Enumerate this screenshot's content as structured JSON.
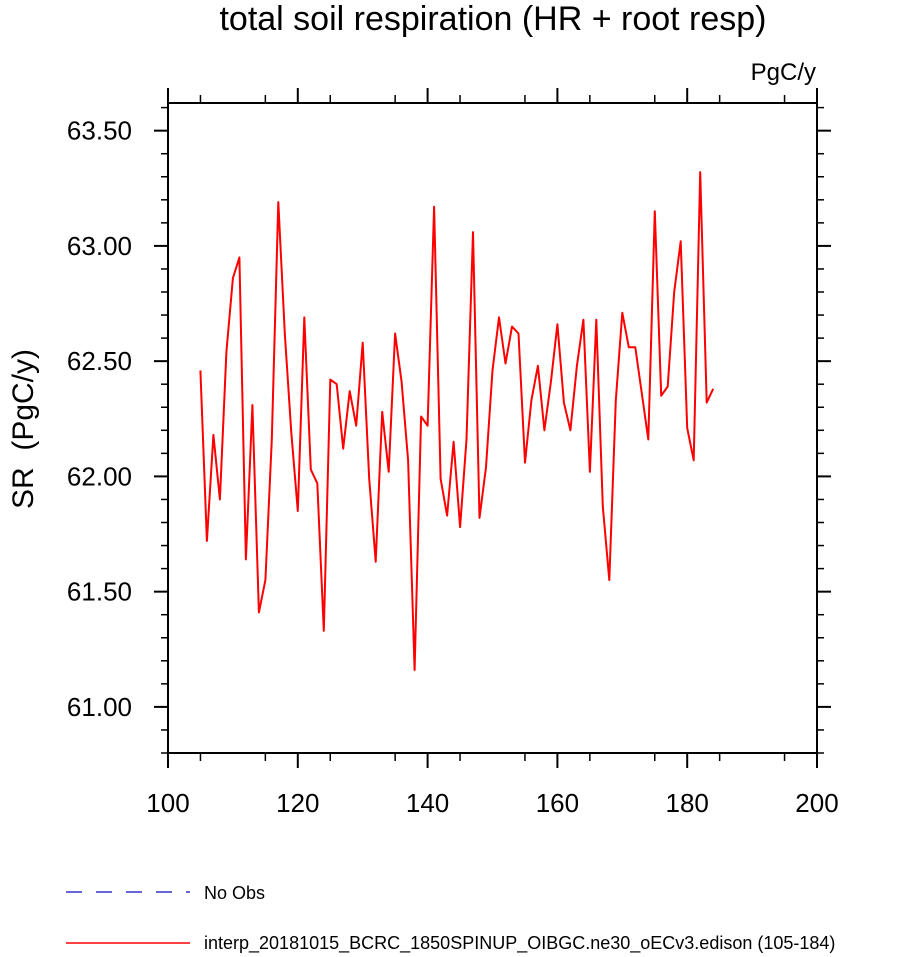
{
  "chart_data": {
    "type": "line",
    "title": "total soil respiration (HR + root resp)",
    "units": "PgC/y",
    "xlabel": "",
    "ylabel": "SR  (PgC/y)",
    "xlim": [
      100,
      200
    ],
    "ylim": [
      60.8,
      63.62
    ],
    "xticks": [
      "100",
      "120",
      "140",
      "160",
      "180",
      "200"
    ],
    "yticks": [
      "61.00",
      "61.50",
      "62.00",
      "62.50",
      "63.00",
      "63.50"
    ],
    "grid": false,
    "legend_position": "bottom-left",
    "series": [
      {
        "name": "No Obs",
        "color": "#3333cc",
        "style": "dashed",
        "x": [],
        "y": []
      },
      {
        "name": "interp_20181015_BCRC_1850SPINUP_OIBGC.ne30_oECv3.edison (105-184)",
        "color": "#ff0000",
        "style": "solid",
        "x": [
          105,
          106,
          107,
          108,
          109,
          110,
          111,
          112,
          113,
          114,
          115,
          116,
          117,
          118,
          119,
          120,
          121,
          122,
          123,
          124,
          125,
          126,
          127,
          128,
          129,
          130,
          131,
          132,
          133,
          134,
          135,
          136,
          137,
          138,
          139,
          140,
          141,
          142,
          143,
          144,
          145,
          146,
          147,
          148,
          149,
          150,
          151,
          152,
          153,
          154,
          155,
          156,
          157,
          158,
          159,
          160,
          161,
          162,
          163,
          164,
          165,
          166,
          167,
          168,
          169,
          170,
          171,
          172,
          173,
          174,
          175,
          176,
          177,
          178,
          179,
          180,
          181,
          182,
          183,
          184
        ],
        "y": [
          62.46,
          61.72,
          62.18,
          61.9,
          62.54,
          62.86,
          62.95,
          61.64,
          62.31,
          61.41,
          61.55,
          62.16,
          63.19,
          62.62,
          62.19,
          61.85,
          62.69,
          62.03,
          61.97,
          61.33,
          62.42,
          62.4,
          62.12,
          62.37,
          62.22,
          62.58,
          61.99,
          61.63,
          62.28,
          62.02,
          62.62,
          62.41,
          62.07,
          61.16,
          62.26,
          62.22,
          63.17,
          61.99,
          61.83,
          62.15,
          61.78,
          62.16,
          63.06,
          61.82,
          62.04,
          62.46,
          62.69,
          62.49,
          62.65,
          62.62,
          62.06,
          62.33,
          62.48,
          62.2,
          62.41,
          62.66,
          62.32,
          62.2,
          62.48,
          62.68,
          62.02,
          62.68,
          61.87,
          61.55,
          62.33,
          62.71,
          62.56,
          62.56,
          62.36,
          62.16,
          63.15,
          62.35,
          62.39,
          62.8,
          63.02,
          62.21,
          62.07,
          63.32,
          62.32,
          62.38
        ]
      }
    ]
  }
}
